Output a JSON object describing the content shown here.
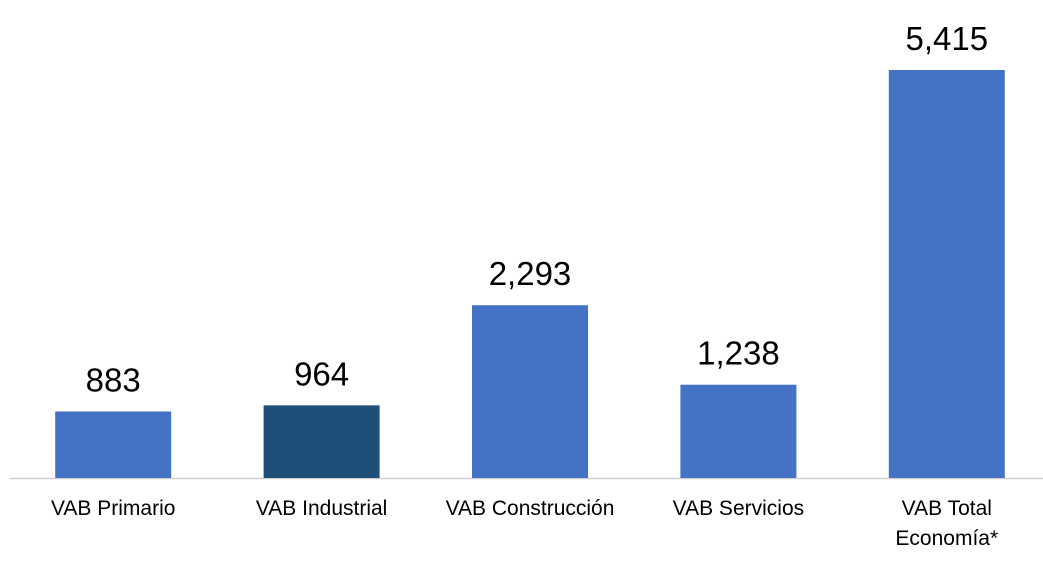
{
  "chart_data": {
    "type": "bar",
    "categories": [
      "VAB Primario",
      "VAB Industrial",
      "VAB Construcción",
      "VAB Servicios",
      "VAB Total Economía*"
    ],
    "values": [
      883,
      964,
      2293,
      1238,
      5415
    ],
    "value_labels": [
      "883",
      "964",
      "2,293",
      "1,238",
      "5,415"
    ],
    "colors": [
      "#4472c4",
      "#1f4e79",
      "#4472c4",
      "#4472c4",
      "#4472c4"
    ]
  }
}
